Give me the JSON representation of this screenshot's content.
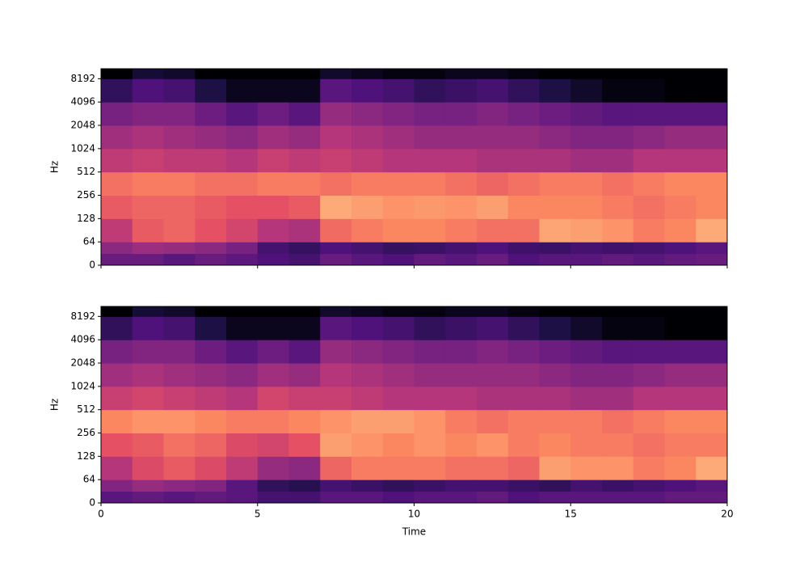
{
  "chart_data": [
    {
      "type": "heatmap",
      "ylabel": "Hz",
      "colormap": "magma",
      "clim": [
        -80,
        0
      ],
      "yscale": "symlog",
      "linthresh": 64,
      "show_xticklabels": false,
      "xlim": [
        0,
        20
      ],
      "xticks": [
        0,
        5,
        10,
        15,
        20
      ],
      "ylim": [
        0,
        11025
      ],
      "yticks": [
        0,
        64,
        128,
        256,
        512,
        1024,
        2048,
        4096,
        8192
      ],
      "xbins": [
        0,
        1,
        2,
        3,
        4,
        5,
        6,
        7,
        8,
        9,
        10,
        11,
        12,
        13,
        14,
        15,
        16,
        17,
        18,
        19,
        20
      ],
      "ybins": [
        0,
        32,
        64,
        128,
        256,
        512,
        1024,
        2048,
        4096,
        8192,
        11025
      ],
      "values": [
        [
          -55,
          -55,
          -58,
          -55,
          -57,
          -60,
          -62,
          -55,
          -58,
          -60,
          -56,
          -58,
          -55,
          -60,
          -58,
          -58,
          -56,
          -58,
          -56,
          -55
        ],
        [
          -48,
          -45,
          -46,
          -48,
          -52,
          -62,
          -65,
          -60,
          -62,
          -65,
          -64,
          -62,
          -60,
          -63,
          -64,
          -62,
          -63,
          -62,
          -60,
          -58
        ],
        [
          -38,
          -28,
          -26,
          -30,
          -34,
          -40,
          -42,
          -25,
          -22,
          -20,
          -20,
          -22,
          -24,
          -24,
          -15,
          -16,
          -18,
          -22,
          -20,
          -14
        ],
        [
          -28,
          -26,
          -26,
          -28,
          -30,
          -30,
          -28,
          -14,
          -16,
          -18,
          -17,
          -18,
          -16,
          -20,
          -20,
          -20,
          -22,
          -24,
          -22,
          -20
        ],
        [
          -24,
          -22,
          -22,
          -24,
          -24,
          -22,
          -22,
          -24,
          -22,
          -22,
          -22,
          -24,
          -26,
          -24,
          -22,
          -22,
          -24,
          -22,
          -20,
          -20
        ],
        [
          -38,
          -36,
          -38,
          -38,
          -40,
          -36,
          -38,
          -36,
          -38,
          -40,
          -40,
          -40,
          -42,
          -42,
          -42,
          -44,
          -44,
          -40,
          -40,
          -40
        ],
        [
          -44,
          -42,
          -44,
          -46,
          -48,
          -44,
          -46,
          -40,
          -42,
          -44,
          -46,
          -46,
          -46,
          -46,
          -48,
          -50,
          -50,
          -48,
          -46,
          -46
        ],
        [
          -52,
          -50,
          -50,
          -54,
          -58,
          -54,
          -58,
          -46,
          -48,
          -50,
          -52,
          -52,
          -50,
          -52,
          -54,
          -56,
          -58,
          -58,
          -58,
          -58
        ],
        [
          -66,
          -60,
          -62,
          -70,
          -76,
          -76,
          -76,
          -58,
          -60,
          -62,
          -66,
          -64,
          -62,
          -66,
          -70,
          -74,
          -78,
          -78,
          -80,
          -80
        ],
        [
          -80,
          -72,
          -74,
          -80,
          -80,
          -80,
          -80,
          -74,
          -76,
          -78,
          -78,
          -76,
          -76,
          -78,
          -80,
          -80,
          -80,
          -80,
          -80,
          -80
        ]
      ]
    },
    {
      "type": "heatmap",
      "ylabel": "Hz",
      "xlabel": "Time",
      "colormap": "magma",
      "clim": [
        -80,
        0
      ],
      "yscale": "symlog",
      "linthresh": 64,
      "show_xticklabels": true,
      "xlim": [
        0,
        20
      ],
      "xticks": [
        0,
        5,
        10,
        15,
        20
      ],
      "ylim": [
        0,
        11025
      ],
      "yticks": [
        0,
        64,
        128,
        256,
        512,
        1024,
        2048,
        4096,
        8192
      ],
      "xbins": [
        0,
        1,
        2,
        3,
        4,
        5,
        6,
        7,
        8,
        9,
        10,
        11,
        12,
        13,
        14,
        15,
        16,
        17,
        18,
        19,
        20
      ],
      "ybins": [
        0,
        32,
        64,
        128,
        256,
        512,
        1024,
        2048,
        4096,
        8192,
        11025
      ],
      "values": [
        [
          -58,
          -56,
          -58,
          -56,
          -58,
          -62,
          -62,
          -58,
          -58,
          -60,
          -58,
          -58,
          -56,
          -60,
          -58,
          -58,
          -58,
          -58,
          -56,
          -56
        ],
        [
          -50,
          -46,
          -48,
          -50,
          -58,
          -66,
          -68,
          -62,
          -64,
          -66,
          -64,
          -62,
          -62,
          -64,
          -66,
          -62,
          -64,
          -62,
          -60,
          -58
        ],
        [
          -40,
          -32,
          -28,
          -32,
          -38,
          -46,
          -48,
          -26,
          -22,
          -22,
          -22,
          -24,
          -24,
          -26,
          -16,
          -18,
          -18,
          -22,
          -20,
          -14
        ],
        [
          -30,
          -28,
          -24,
          -26,
          -32,
          -34,
          -30,
          -16,
          -18,
          -20,
          -18,
          -20,
          -18,
          -22,
          -20,
          -22,
          -22,
          -24,
          -22,
          -22
        ],
        [
          -20,
          -18,
          -18,
          -20,
          -22,
          -22,
          -20,
          -18,
          -16,
          -16,
          -18,
          -22,
          -24,
          -22,
          -22,
          -22,
          -24,
          -22,
          -20,
          -20
        ],
        [
          -36,
          -34,
          -36,
          -38,
          -40,
          -34,
          -36,
          -36,
          -38,
          -40,
          -40,
          -40,
          -42,
          -42,
          -42,
          -44,
          -44,
          -40,
          -40,
          -40
        ],
        [
          -44,
          -42,
          -44,
          -46,
          -48,
          -44,
          -46,
          -40,
          -42,
          -44,
          -46,
          -46,
          -46,
          -46,
          -48,
          -50,
          -50,
          -48,
          -46,
          -46
        ],
        [
          -52,
          -50,
          -50,
          -54,
          -58,
          -54,
          -58,
          -46,
          -48,
          -50,
          -52,
          -52,
          -50,
          -52,
          -54,
          -56,
          -58,
          -58,
          -58,
          -58
        ],
        [
          -66,
          -60,
          -62,
          -70,
          -76,
          -76,
          -76,
          -58,
          -60,
          -62,
          -66,
          -64,
          -62,
          -66,
          -70,
          -74,
          -78,
          -78,
          -80,
          -80
        ],
        [
          -80,
          -72,
          -74,
          -80,
          -80,
          -80,
          -80,
          -74,
          -76,
          -78,
          -78,
          -76,
          -76,
          -78,
          -80,
          -80,
          -80,
          -80,
          -80,
          -80
        ]
      ]
    }
  ]
}
